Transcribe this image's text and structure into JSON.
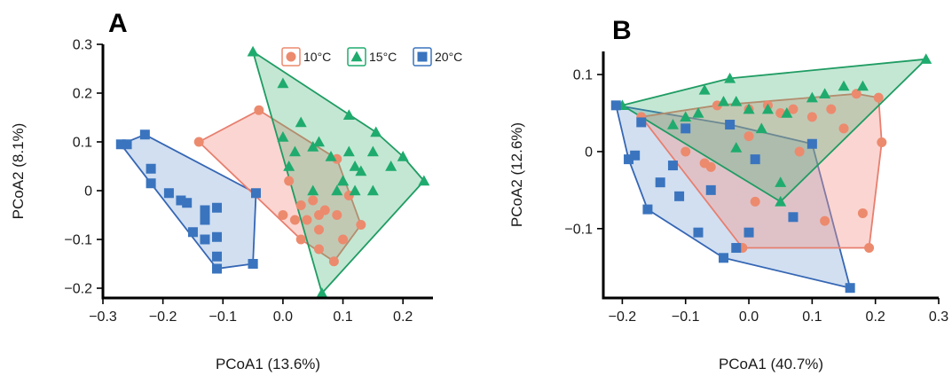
{
  "colors": {
    "10°C": "#ec8a6e",
    "15°C": "#1fab6e",
    "20°C": "#3a74be"
  },
  "fills": {
    "10°C": "rgba(244,150,140,0.40)",
    "15°C": "rgba(60,175,110,0.30)",
    "20°C": "rgba(90,140,205,0.28)"
  },
  "hullStroke": {
    "10°C": "#e77f6f",
    "15°C": "#1f9c63",
    "20°C": "#3566b4"
  },
  "legend": [
    {
      "label": "10°C",
      "marker": "circle"
    },
    {
      "label": "15°C",
      "marker": "triangle"
    },
    {
      "label": "20°C",
      "marker": "square"
    }
  ],
  "chart_data": [
    {
      "panel": "A",
      "type": "scatter",
      "title": "",
      "xlabel": "PCoA1 (13.6%)",
      "ylabel": "PCoA2 (8.1%)",
      "xlim": [
        -0.3,
        0.25
      ],
      "ylim": [
        -0.22,
        0.3
      ],
      "xticks": [
        -0.3,
        -0.2,
        -0.1,
        0.0,
        0.1,
        0.2
      ],
      "xtick_labels": [
        "−0.3",
        "−0.2",
        "−0.1",
        "0.0",
        "0.1",
        "0.2"
      ],
      "yticks": [
        -0.2,
        -0.1,
        0,
        0.1,
        0.2,
        0.3
      ],
      "ytick_labels": [
        "−0.2",
        "−0.1",
        "0",
        "0.1",
        "0.2",
        "0.3"
      ],
      "legend_position": "top-right",
      "series": [
        {
          "name": "10°C",
          "marker": "circle",
          "points": [
            [
              -0.14,
              0.1
            ],
            [
              -0.04,
              0.165
            ],
            [
              0.09,
              0.065
            ],
            [
              0.11,
              -0.01
            ],
            [
              0.13,
              -0.07
            ],
            [
              0.085,
              -0.145
            ],
            [
              0.06,
              -0.12
            ],
            [
              0.03,
              -0.1
            ],
            [
              0.0,
              -0.05
            ],
            [
              0.03,
              -0.03
            ],
            [
              0.05,
              -0.02
            ],
            [
              0.07,
              -0.04
            ],
            [
              0.04,
              -0.06
            ],
            [
              0.06,
              -0.05
            ],
            [
              0.09,
              -0.05
            ],
            [
              0.02,
              -0.06
            ],
            [
              0.06,
              -0.08
            ],
            [
              0.1,
              -0.1
            ],
            [
              0.01,
              0.02
            ]
          ]
        },
        {
          "name": "15°C",
          "marker": "triangle",
          "points": [
            [
              -0.05,
              0.285
            ],
            [
              0.0,
              0.22
            ],
            [
              0.11,
              0.155
            ],
            [
              0.155,
              0.12
            ],
            [
              0.2,
              0.07
            ],
            [
              0.235,
              0.02
            ],
            [
              0.065,
              -0.21
            ],
            [
              0.03,
              0.14
            ],
            [
              0.0,
              0.11
            ],
            [
              0.05,
              0.09
            ],
            [
              0.08,
              0.07
            ],
            [
              0.12,
              0.05
            ],
            [
              0.15,
              0.08
            ],
            [
              0.13,
              0.04
            ],
            [
              0.18,
              0.05
            ],
            [
              0.06,
              0.1
            ],
            [
              0.02,
              0.08
            ],
            [
              0.1,
              0.02
            ],
            [
              0.15,
              0.0
            ],
            [
              0.09,
              0.0
            ],
            [
              0.12,
              0.0
            ],
            [
              0.11,
              0.08
            ],
            [
              0.05,
              0.0
            ],
            [
              0.01,
              0.05
            ],
            [
              0.1,
              0.02
            ]
          ]
        },
        {
          "name": "20°C",
          "marker": "square",
          "points": [
            [
              -0.27,
              0.095
            ],
            [
              -0.23,
              0.115
            ],
            [
              -0.045,
              -0.005
            ],
            [
              -0.05,
              -0.15
            ],
            [
              -0.11,
              -0.16
            ],
            [
              -0.26,
              0.095
            ],
            [
              -0.22,
              0.045
            ],
            [
              -0.22,
              0.015
            ],
            [
              -0.19,
              -0.005
            ],
            [
              -0.17,
              -0.02
            ],
            [
              -0.16,
              -0.025
            ],
            [
              -0.13,
              -0.04
            ],
            [
              -0.13,
              -0.06
            ],
            [
              -0.11,
              -0.035
            ],
            [
              -0.11,
              -0.095
            ],
            [
              -0.11,
              -0.135
            ],
            [
              -0.15,
              -0.085
            ],
            [
              -0.13,
              -0.1
            ],
            [
              -0.05,
              -0.15
            ]
          ]
        }
      ]
    },
    {
      "panel": "B",
      "type": "scatter",
      "title": "",
      "xlabel": "PCoA1 (40.7%)",
      "ylabel": "PCoA2 (12.6%)",
      "xlim": [
        -0.23,
        0.3
      ],
      "ylim": [
        -0.19,
        0.13
      ],
      "xticks": [
        -0.2,
        -0.1,
        0.0,
        0.1,
        0.2,
        0.3
      ],
      "xtick_labels": [
        "−0.2",
        "−0.1",
        "0.0",
        "0.1",
        "0.2",
        "0.3"
      ],
      "yticks": [
        -0.1,
        0,
        0.1
      ],
      "ytick_labels": [
        "−0.1",
        "0",
        "0.1"
      ],
      "series": [
        {
          "name": "10°C",
          "marker": "circle",
          "points": [
            [
              -0.17,
              0.045
            ],
            [
              0.205,
              0.07
            ],
            [
              0.21,
              0.012
            ],
            [
              0.19,
              -0.125
            ],
            [
              -0.01,
              -0.125
            ],
            [
              -0.05,
              0.06
            ],
            [
              0.0,
              0.055
            ],
            [
              0.03,
              0.06
            ],
            [
              0.05,
              0.05
            ],
            [
              0.07,
              0.055
            ],
            [
              0.1,
              0.045
            ],
            [
              0.13,
              0.055
            ],
            [
              0.17,
              0.075
            ],
            [
              0.15,
              0.03
            ],
            [
              0.1,
              0.01
            ],
            [
              0.08,
              0.0
            ],
            [
              -0.1,
              0.0
            ],
            [
              -0.06,
              -0.02
            ],
            [
              0.0,
              0.02
            ],
            [
              0.01,
              -0.065
            ],
            [
              0.18,
              -0.08
            ],
            [
              0.12,
              -0.09
            ],
            [
              -0.07,
              -0.015
            ]
          ]
        },
        {
          "name": "15°C",
          "marker": "triangle",
          "points": [
            [
              -0.2,
              0.06
            ],
            [
              0.28,
              0.12
            ],
            [
              0.05,
              -0.065
            ],
            [
              -0.03,
              0.095
            ],
            [
              -0.1,
              0.045
            ],
            [
              -0.07,
              0.08
            ],
            [
              -0.04,
              0.065
            ],
            [
              -0.02,
              0.065
            ],
            [
              0.0,
              0.055
            ],
            [
              0.03,
              0.055
            ],
            [
              0.06,
              0.05
            ],
            [
              0.1,
              0.07
            ],
            [
              0.15,
              0.085
            ],
            [
              0.18,
              0.085
            ],
            [
              0.12,
              0.075
            ],
            [
              -0.12,
              0.035
            ],
            [
              -0.02,
              0.005
            ],
            [
              0.05,
              -0.04
            ],
            [
              -0.08,
              0.05
            ],
            [
              0.02,
              0.03
            ]
          ]
        },
        {
          "name": "20°C",
          "marker": "square",
          "points": [
            [
              -0.21,
              0.06
            ],
            [
              -0.17,
              0.038
            ],
            [
              -0.19,
              -0.01
            ],
            [
              -0.16,
              -0.075
            ],
            [
              -0.04,
              -0.138
            ],
            [
              0.16,
              -0.177
            ],
            [
              -0.03,
              0.035
            ],
            [
              0.1,
              0.01
            ],
            [
              -0.1,
              0.03
            ],
            [
              -0.14,
              -0.04
            ],
            [
              -0.11,
              -0.058
            ],
            [
              -0.06,
              -0.05
            ],
            [
              -0.08,
              -0.105
            ],
            [
              -0.02,
              -0.125
            ],
            [
              0.0,
              -0.105
            ],
            [
              0.07,
              -0.085
            ],
            [
              0.01,
              -0.01
            ],
            [
              -0.12,
              -0.018
            ],
            [
              -0.18,
              -0.005
            ]
          ]
        }
      ]
    }
  ]
}
